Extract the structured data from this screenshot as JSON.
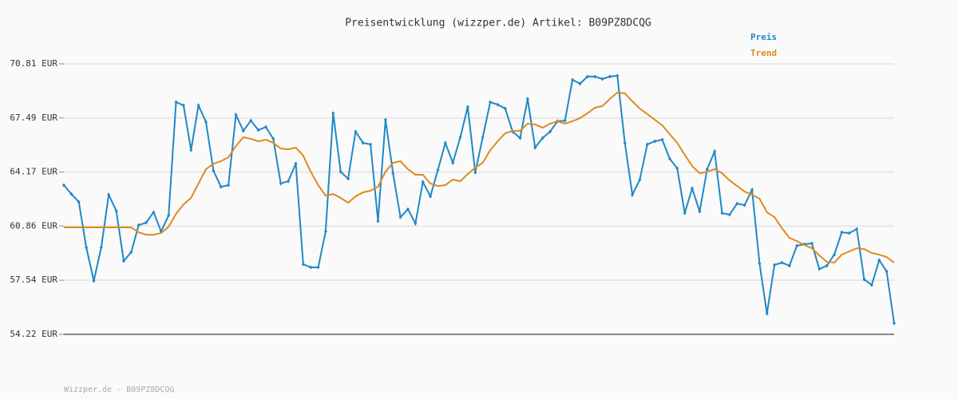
{
  "chart_data": {
    "type": "line",
    "title": "Preisentwicklung (wizzper.de) Artikel: B09PZ8DCQG",
    "footer": "Wizzper.de - B09PZ8DCQG",
    "ylim": [
      54.22,
      70.81
    ],
    "yticks": [
      {
        "value": 54.22,
        "label": "54.22 EUR"
      },
      {
        "value": 57.54,
        "label": "57.54 EUR"
      },
      {
        "value": 60.86,
        "label": "60.86 EUR"
      },
      {
        "value": 64.17,
        "label": "64.17 EUR"
      },
      {
        "value": 67.49,
        "label": "67.49 EUR"
      },
      {
        "value": 70.81,
        "label": "70.81 EUR"
      }
    ],
    "grid": true,
    "series": [
      {
        "name": "Preis",
        "color": "#1f88c8",
        "markers": true,
        "values": [
          63.37,
          62.83,
          62.34,
          59.55,
          57.5,
          59.55,
          62.78,
          61.8,
          58.72,
          59.26,
          60.92,
          61.07,
          61.71,
          60.53,
          61.51,
          68.46,
          68.26,
          65.52,
          68.26,
          67.24,
          64.25,
          63.27,
          63.37,
          67.68,
          66.7,
          67.33,
          66.75,
          66.94,
          66.21,
          63.47,
          63.61,
          64.69,
          58.52,
          58.33,
          58.33,
          60.53,
          67.78,
          64.2,
          63.76,
          66.65,
          65.96,
          65.87,
          61.17,
          67.38,
          64.1,
          61.41,
          61.9,
          61.02,
          63.57,
          62.68,
          64.3,
          65.96,
          64.74,
          66.31,
          68.17,
          64.15,
          66.31,
          68.46,
          68.31,
          68.07,
          66.65,
          66.26,
          68.66,
          65.67,
          66.26,
          66.65,
          67.29,
          67.33,
          69.83,
          69.59,
          70.03,
          70.03,
          69.88,
          70.03,
          70.08,
          65.96,
          62.78,
          63.71,
          65.87,
          66.06,
          66.16,
          64.99,
          64.4,
          61.66,
          63.17,
          61.75,
          64.35,
          65.43,
          61.66,
          61.56,
          62.24,
          62.15,
          63.08,
          58.57,
          55.49,
          58.48,
          58.62,
          58.43,
          59.65,
          59.75,
          59.8,
          58.23,
          58.43,
          59.11,
          60.48,
          60.43,
          60.68,
          57.59,
          57.25,
          58.77,
          58.08,
          54.9
        ]
      },
      {
        "name": "Trend",
        "color": "#e08a1e",
        "markers": false,
        "values": [
          60.78,
          60.78,
          60.78,
          60.78,
          60.78,
          60.78,
          60.78,
          60.78,
          60.78,
          60.78,
          60.48,
          60.33,
          60.33,
          60.43,
          60.82,
          61.61,
          62.19,
          62.59,
          63.47,
          64.35,
          64.69,
          64.84,
          65.08,
          65.77,
          66.31,
          66.21,
          66.06,
          66.16,
          65.96,
          65.62,
          65.57,
          65.67,
          65.18,
          64.2,
          63.37,
          62.73,
          62.83,
          62.59,
          62.29,
          62.68,
          62.93,
          63.03,
          63.27,
          64.2,
          64.74,
          64.84,
          64.35,
          64.01,
          64.01,
          63.47,
          63.32,
          63.37,
          63.71,
          63.61,
          64.05,
          64.45,
          64.74,
          65.52,
          66.06,
          66.55,
          66.7,
          66.7,
          67.14,
          67.09,
          66.89,
          67.14,
          67.29,
          67.14,
          67.29,
          67.48,
          67.78,
          68.12,
          68.22,
          68.66,
          69.05,
          69.0,
          68.51,
          68.07,
          67.73,
          67.38,
          67.04,
          66.5,
          65.96,
          65.23,
          64.54,
          64.1,
          64.2,
          64.35,
          64.1,
          63.66,
          63.32,
          62.98,
          62.78,
          62.54,
          61.71,
          61.41,
          60.73,
          60.14,
          59.94,
          59.7,
          59.5,
          59.06,
          58.67,
          58.62,
          59.11,
          59.31,
          59.5,
          59.45,
          59.21,
          59.11,
          58.96,
          58.62
        ]
      }
    ]
  }
}
